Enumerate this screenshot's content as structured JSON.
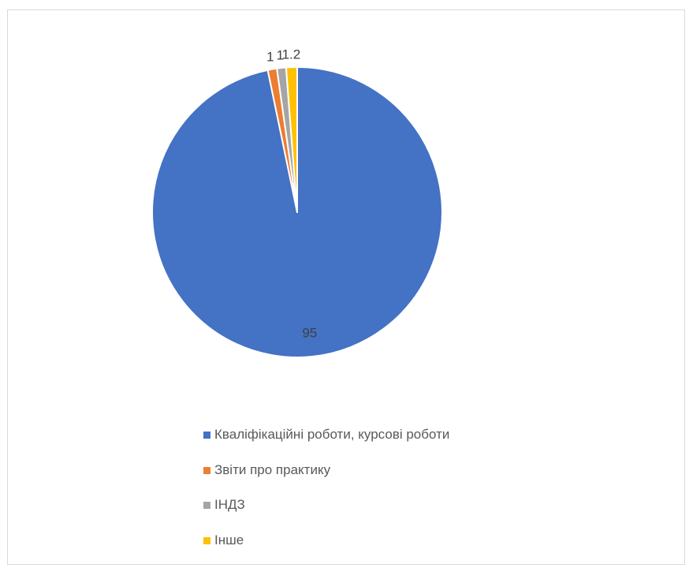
{
  "chart_data": {
    "type": "pie",
    "categories": [
      "Кваліфікаційні роботи, курсові роботи",
      "Звіти про практику",
      "ІНДЗ",
      "Інше"
    ],
    "values": [
      95,
      1,
      1,
      1.2
    ],
    "data_labels": [
      "95",
      "1",
      "1",
      "1.2"
    ],
    "colors": [
      "#4472c4",
      "#ed7d31",
      "#a5a5a5",
      "#ffc000"
    ],
    "start_angle": "12 o'clock",
    "direction": "clockwise",
    "legend": "bottom",
    "title": ""
  },
  "legend": {
    "items": [
      {
        "label": "Кваліфікаційні роботи, курсові роботи",
        "color": "#4472c4"
      },
      {
        "label": "Звіти про практику",
        "color": "#ed7d31"
      },
      {
        "label": "ІНДЗ",
        "color": "#a5a5a5"
      },
      {
        "label": "Інше",
        "color": "#ffc000"
      }
    ]
  }
}
